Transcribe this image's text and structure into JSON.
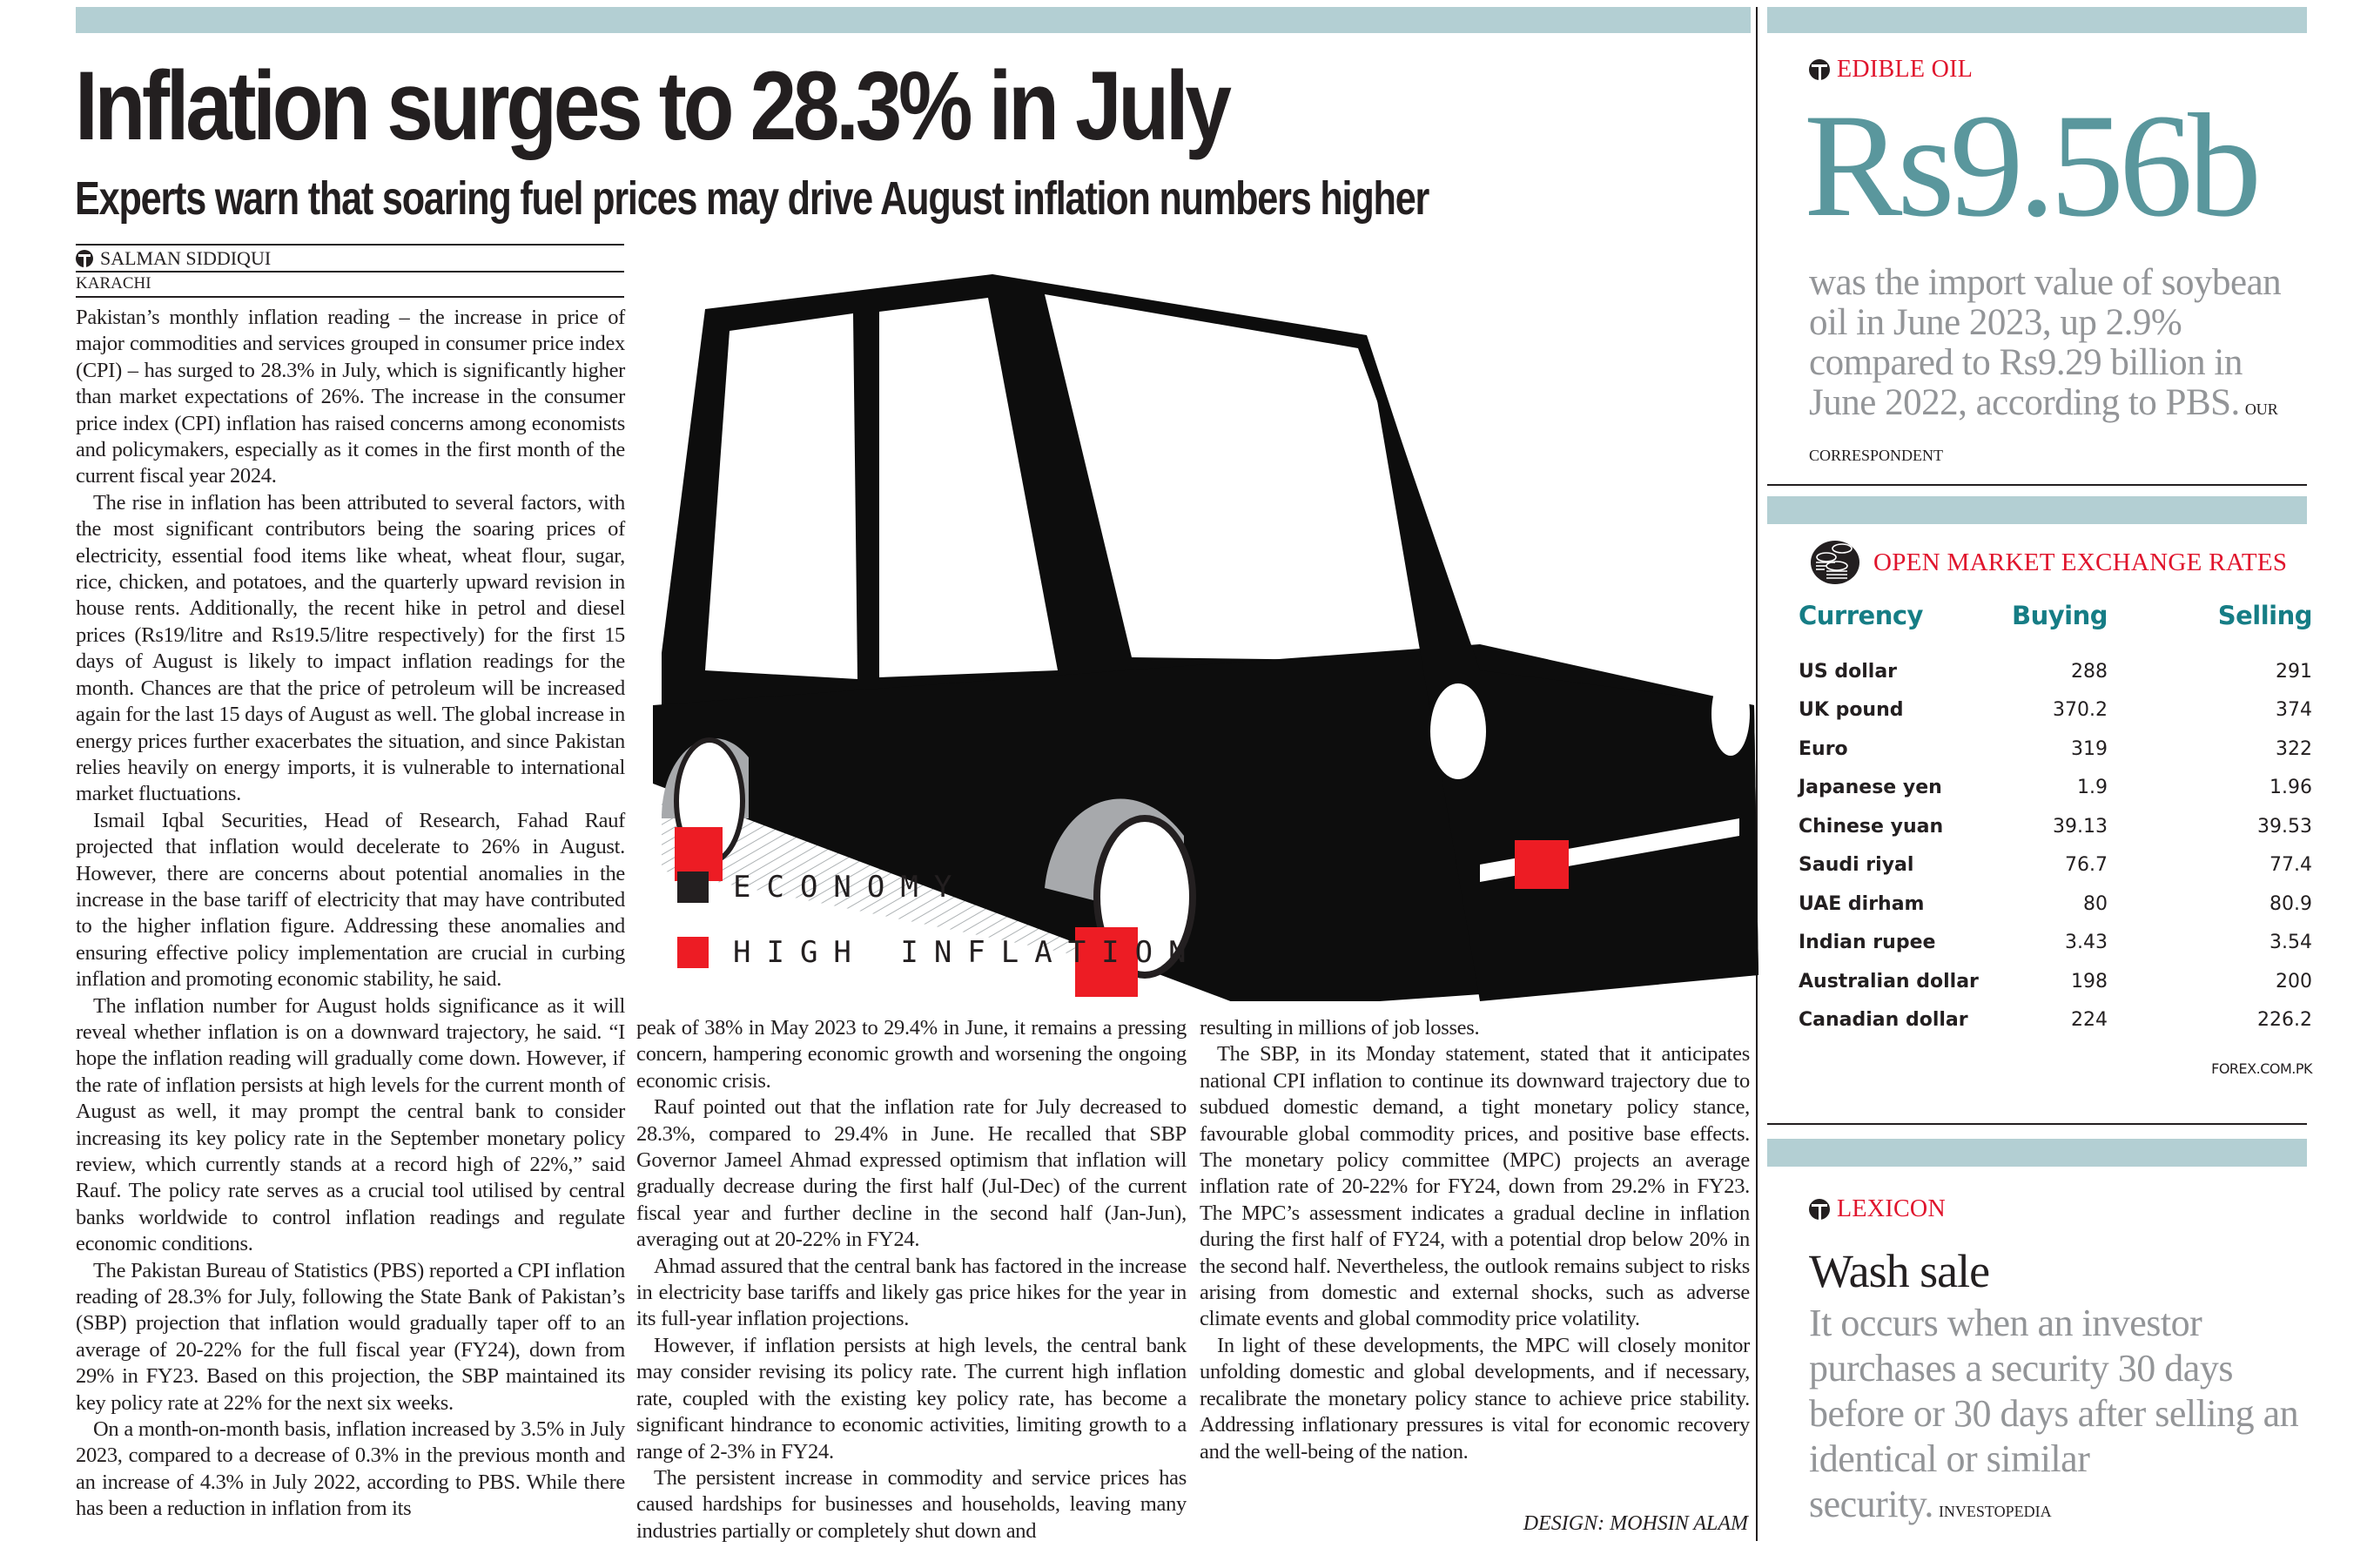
{
  "article": {
    "headline": "Inflation surges to 28.3% in July",
    "subheadline": "Experts warn that soaring fuel prices may drive August inflation numbers higher",
    "byline": "SALMAN SIDDIQUI",
    "dateline": "KARACHI",
    "columns": [
      {
        "paragraphs": [
          "Pakistan’s monthly inflation reading – the increase in price of major commodities and services grouped in consumer price index (CPI) – has surged to 28.3% in July, which is significantly higher than market expectations of 26%. The increase in the consumer price index (CPI) inflation has raised concerns among economists and policymakers, especially as it comes in the first month of the current fiscal year 2024.",
          "The rise in inflation has been attributed to several factors, with the most significant contributors being the soaring prices of electricity, essential food items like wheat, wheat flour, sugar, rice, chicken, and potatoes, and the quarterly upward revision in house rents. Additionally, the recent hike in petrol and diesel prices (Rs19/litre and Rs19.5/litre respectively) for the first 15 days of August is likely to impact inflation readings for the month. Chances are that the price of petroleum will be increased again for the last 15 days of August as well. The global increase in energy prices further exacerbates the situation, and since Pakistan relies heavily on energy imports, it is vulnerable to international market fluctuations.",
          "Ismail Iqbal Securities, Head of Research, Fahad Rauf projected that inflation would decelerate to 26% in August. However, there are concerns about potential anomalies in the increase in the base tariff of electricity that may have contributed to the higher inflation figure. Addressing these anomalies and ensuring effective policy implementation are crucial in curbing inflation and promoting economic stability, he said.",
          "The inflation number for August holds significance as it will reveal whether inflation is on a downward trajectory, he said. “I hope the inflation reading will gradually come down. However, if the rate of inflation persists at high levels for the current month of August as well, it may prompt the central bank to consider increasing its key policy rate in the September monetary policy review, which currently stands at a record high of 22%,” said Rauf. The policy rate serves as a crucial tool utilised by central banks worldwide to control inflation readings and regulate economic conditions.",
          "The Pakistan Bureau of Statistics (PBS) reported a CPI inflation reading of 28.3% for July, following the State Bank of Pakistan’s (SBP) projection that inflation would gradually taper off to an average of 20-22% for the full fiscal year (FY24), down from 29% in FY23. Based on this projection, the SBP maintained its key policy rate at 22% for the next six weeks.",
          "On a month-on-month basis, inflation increased by 3.5% in July 2023, compared to a decrease of 0.3% in the previous month and an increase of 4.3% in July 2022, according to PBS. While there has been a reduction in inflation from its"
        ]
      },
      {
        "paragraphs": [
          "peak of 38% in May 2023 to 29.4% in June, it remains a pressing concern, hampering economic growth and worsening the ongoing economic crisis.",
          "Rauf pointed out that the inflation rate for July decreased to 28.3%, compared to 29.4% in June. He recalled that SBP Governor Jameel Ahmad expressed optimism that inflation will gradually decrease during the first half (Jul-Dec) of the current fiscal year and further decline in the second half (Jan-Jun), averaging out at 20-22% in FY24.",
          "Ahmad assured that the central bank has factored in the increase in electricity base tariffs and likely gas price hikes for the year in its full-year inflation projections.",
          "However, if inflation persists at high levels, the central bank may consider revising its policy rate. The current high inflation rate, coupled with the existing key policy rate, has become a significant hindrance to economic activities, limiting growth to a range of 2-3% in FY24.",
          "The persistent increase in commodity and service prices has caused hardships for businesses and households, leaving many industries partially or completely shut down and"
        ]
      },
      {
        "paragraphs": [
          "resulting in millions of job losses.",
          "The SBP, in its Monday statement, stated that it anticipates national CPI inflation to continue its downward trajectory due to subdued domestic demand, a tight monetary policy stance, favourable global commodity prices, and positive base effects. The monetary policy committee (MPC) projects an average inflation rate of 20-22% for FY24, down from 29.2% in FY23. The MPC’s assessment indicates a gradual decline in inflation during the first half of FY24, with a potential drop below 20% in the second half. Nevertheless, the outlook remains subject to risks arising from domestic and external shocks, such as adverse climate events and global commodity price volatility.",
          "In light of these developments, the MPC will closely monitor unfolding domestic and global developments, and if necessary, recalibrate the monetary policy stance to achieve price stability. Addressing inflationary pressures is vital for economic recovery and the well-being of the nation."
        ]
      }
    ],
    "design_credit": "DESIGN: MOHSIN ALAM"
  },
  "illustration": {
    "icon": "car-on-blocks-illustration",
    "legend": [
      {
        "label": "ECONOMY",
        "color": "#231f20"
      },
      {
        "label": "HIGH INFLATION",
        "color": "#ed1c24"
      }
    ]
  },
  "edible_oil": {
    "kicker": "EDIBLE OIL",
    "figure": "Rs9.56b",
    "statement": "was the import value of soybean oil in June 2023, up 2.9% compared to Rs9.29 billion in June 2022, according to PBS.",
    "source": "OUR CORRESPONDENT"
  },
  "exchange_rates": {
    "title": "OPEN MARKET EXCHANGE RATES",
    "icon": "coin-stack-icon",
    "headers": {
      "currency": "Currency",
      "buying": "Buying",
      "selling": "Selling"
    },
    "rows": [
      {
        "currency": "US dollar",
        "buying": "288",
        "selling": "291"
      },
      {
        "currency": "UK pound",
        "buying": "370.2",
        "selling": "374"
      },
      {
        "currency": "Euro",
        "buying": "319",
        "selling": "322"
      },
      {
        "currency": "Japanese yen",
        "buying": "1.9",
        "selling": "1.96"
      },
      {
        "currency": "Chinese yuan",
        "buying": "39.13",
        "selling": "39.53"
      },
      {
        "currency": "Saudi riyal",
        "buying": "76.7",
        "selling": "77.4"
      },
      {
        "currency": "UAE dirham",
        "buying": "80",
        "selling": "80.9"
      },
      {
        "currency": "Indian rupee",
        "buying": "3.43",
        "selling": "3.54"
      },
      {
        "currency": "Australian dollar",
        "buying": "198",
        "selling": "200"
      },
      {
        "currency": "Canadian dollar",
        "buying": "224",
        "selling": "226.2"
      }
    ],
    "source": "FOREX.COM.PK"
  },
  "lexicon": {
    "kicker": "LEXICON",
    "term": "Wash sale",
    "definition": "It occurs when an investor purchases a security 30 days before or 30 days after selling an identical or similar security.",
    "source": "INVESTOPEDIA"
  },
  "colors": {
    "bar": "#b3cfd3",
    "accent_red": "#e0142c",
    "teal_figure": "#5a979d",
    "teal_header": "#167d85",
    "gray_text": "#939598"
  }
}
